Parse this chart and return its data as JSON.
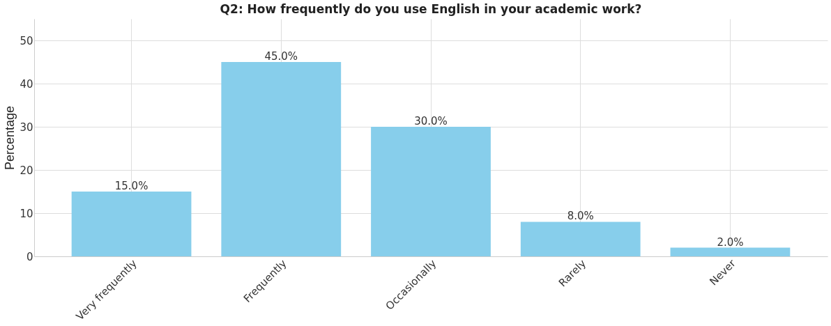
{
  "chart_data": {
    "type": "bar",
    "title": "Q2: How frequently do you use English in your academic work?",
    "ylabel": "Percentage",
    "categories": [
      "Very frequently",
      "Frequently",
      "Occasionally",
      "Rarely",
      "Never"
    ],
    "values": [
      15,
      45,
      30,
      8,
      2
    ],
    "value_labels": [
      "15.0%",
      "45.0%",
      "30.0%",
      "8.0%",
      "2.0%"
    ],
    "color": "#87ceeb",
    "ylim": [
      0,
      55
    ],
    "yticks": [
      0,
      10,
      20,
      30,
      40,
      50
    ],
    "grid": true
  }
}
